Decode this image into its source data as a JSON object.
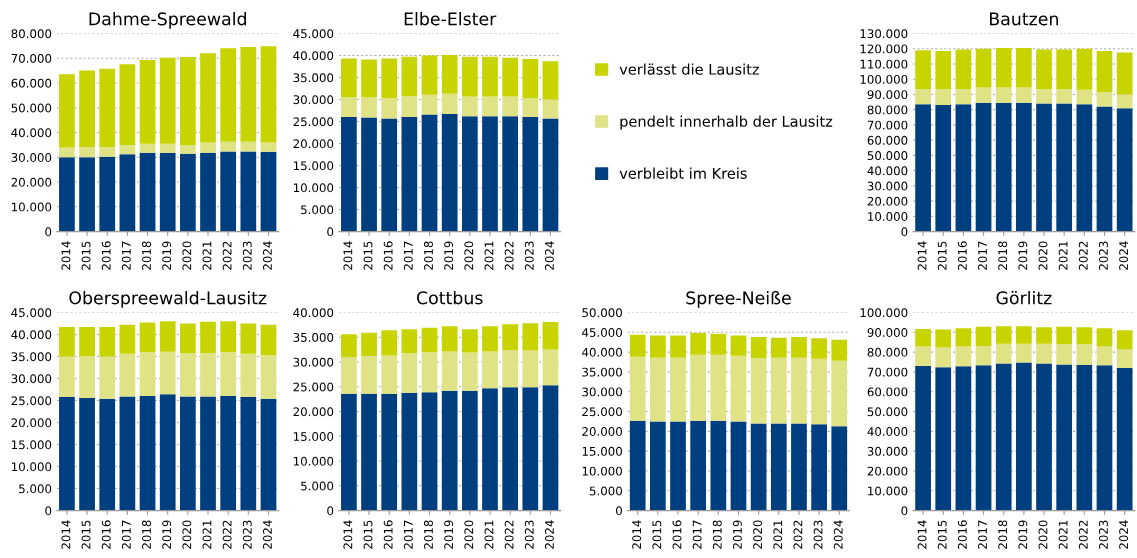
{
  "chart_data": [
    {
      "type": "bar",
      "title": "Dahme-Spreewald",
      "stacked": true,
      "grid": "y",
      "categories": [
        "2014",
        "2015",
        "2016",
        "2017",
        "2018",
        "2019",
        "2020",
        "2021",
        "2022",
        "2023",
        "2024"
      ],
      "series": [
        {
          "color": "#003f7f",
          "values": [
            30000,
            30000,
            30200,
            31200,
            31800,
            31800,
            31400,
            31800,
            32300,
            32300,
            32200
          ]
        },
        {
          "color": "#dfe386",
          "values": [
            4000,
            4200,
            4000,
            3800,
            3700,
            3700,
            3600,
            4200,
            4000,
            4000,
            3800
          ]
        },
        {
          "color": "#c8d400",
          "values": [
            29500,
            30800,
            31600,
            32600,
            33800,
            34700,
            35500,
            36000,
            37700,
            38200,
            38800
          ]
        }
      ],
      "ylim": [
        0,
        80000
      ],
      "yticks": [
        0,
        {
          "value": 10000,
          "label": "10.000"
        },
        {
          "value": 20000,
          "label": "20.000"
        },
        {
          "value": 30000,
          "label": "30.000"
        },
        {
          "value": 40000,
          "label": "40.000"
        },
        {
          "value": 50000,
          "label": "50.000"
        },
        {
          "value": 60000,
          "label": "60.000"
        },
        {
          "value": 70000,
          "label": "70.000"
        },
        {
          "value": 80000,
          "label": "80.000"
        }
      ]
    },
    {
      "type": "bar",
      "title": "Elbe-Elster",
      "stacked": true,
      "grid": "y",
      "legend": "right",
      "categories": [
        "2014",
        "2015",
        "2016",
        "2017",
        "2018",
        "2019",
        "2020",
        "2021",
        "2022",
        "2023",
        "2024"
      ],
      "series": [
        {
          "name": "verbleibt im Kreis",
          "color": "#003f7f",
          "values": [
            26000,
            25900,
            25700,
            26000,
            26600,
            26700,
            26200,
            26200,
            26200,
            26000,
            25700
          ]
        },
        {
          "name": "pendelt innerhalb der Lausitz",
          "color": "#dfe386",
          "values": [
            4500,
            4600,
            4600,
            4800,
            4500,
            4600,
            4500,
            4500,
            4500,
            4300,
            4300
          ]
        },
        {
          "name": "verlässt die Lausitz",
          "color": "#c8d400",
          "values": [
            8800,
            8600,
            9000,
            8900,
            8900,
            8800,
            9000,
            9000,
            8800,
            8900,
            8700
          ]
        }
      ],
      "ylim": [
        0,
        45000
      ],
      "yticks": [
        0,
        {
          "value": 5000,
          "label": "5.000"
        },
        {
          "value": 10000,
          "label": "10.000"
        },
        {
          "value": 15000,
          "label": "15.000"
        },
        {
          "value": 20000,
          "label": "20.000"
        },
        {
          "value": 25000,
          "label": "25.000"
        },
        {
          "value": 30000,
          "label": "30.000"
        },
        {
          "value": 35000,
          "label": "35.000"
        },
        {
          "value": 40000,
          "label": "40.000"
        },
        {
          "value": 45000,
          "label": "45.000"
        }
      ]
    },
    {
      "type": "bar",
      "title": "Bautzen",
      "stacked": true,
      "grid": "y",
      "categories": [
        "2014",
        "2015",
        "2016",
        "2017",
        "2018",
        "2019",
        "2020",
        "2021",
        "2022",
        "2023",
        "2024"
      ],
      "series": [
        {
          "color": "#003f7f",
          "values": [
            83500,
            83000,
            83500,
            84500,
            84500,
            84500,
            84000,
            84000,
            83500,
            82000,
            81000
          ]
        },
        {
          "color": "#dfe386",
          "values": [
            10000,
            10500,
            10000,
            10000,
            10000,
            10000,
            9500,
            9500,
            9500,
            9500,
            9000
          ]
        },
        {
          "color": "#c8d400",
          "values": [
            25500,
            25000,
            26000,
            25500,
            26000,
            26000,
            26000,
            26000,
            27000,
            27000,
            27500
          ]
        }
      ],
      "ylim": [
        0,
        130000
      ],
      "yticks": [
        0,
        {
          "value": 10000,
          "label": "10.000"
        },
        {
          "value": 20000,
          "label": "20.000"
        },
        {
          "value": 30000,
          "label": "30.000"
        },
        {
          "value": 40000,
          "label": "40.000"
        },
        {
          "value": 50000,
          "label": "50.000"
        },
        {
          "value": 60000,
          "label": "60.000"
        },
        {
          "value": 70000,
          "label": "70.000"
        },
        {
          "value": 80000,
          "label": "80.000"
        },
        {
          "value": 90000,
          "label": "90.000"
        },
        {
          "value": 100000,
          "label": "100.000"
        },
        {
          "value": 110000,
          "label": "110.000"
        },
        {
          "value": 120000,
          "label": "120.000"
        },
        {
          "value": 130000,
          "label": "130.000"
        }
      ]
    },
    {
      "type": "bar",
      "title": "Oberspreewald-Lausitz",
      "stacked": true,
      "grid": "y",
      "categories": [
        "2014",
        "2015",
        "2016",
        "2017",
        "2018",
        "2019",
        "2020",
        "2021",
        "2022",
        "2023",
        "2024"
      ],
      "series": [
        {
          "color": "#003f7f",
          "values": [
            25800,
            25600,
            25400,
            25900,
            26000,
            26400,
            25900,
            25900,
            26000,
            25800,
            25400
          ]
        },
        {
          "color": "#dfe386",
          "values": [
            9200,
            9500,
            9600,
            9700,
            10000,
            9700,
            9900,
            9900,
            10000,
            9800,
            9900
          ]
        },
        {
          "color": "#c8d400",
          "values": [
            6700,
            6600,
            6700,
            6600,
            6700,
            6900,
            6700,
            7100,
            7000,
            6900,
            6900
          ]
        }
      ],
      "ylim": [
        0,
        45000
      ],
      "yticks": [
        0,
        {
          "value": 5000,
          "label": "5.000"
        },
        {
          "value": 10000,
          "label": "10.000"
        },
        {
          "value": 15000,
          "label": "15.000"
        },
        {
          "value": 20000,
          "label": "20.000"
        },
        {
          "value": 25000,
          "label": "25.000"
        },
        {
          "value": 30000,
          "label": "30.000"
        },
        {
          "value": 35000,
          "label": "35.000"
        },
        {
          "value": 40000,
          "label": "40.000"
        },
        {
          "value": 45000,
          "label": "45.000"
        }
      ]
    },
    {
      "type": "bar",
      "title": "Cottbus",
      "stacked": true,
      "grid": "y",
      "categories": [
        "2014",
        "2015",
        "2016",
        "2017",
        "2018",
        "2019",
        "2020",
        "2021",
        "2022",
        "2023",
        "2024"
      ],
      "series": [
        {
          "color": "#003f7f",
          "values": [
            23600,
            23600,
            23600,
            23800,
            23900,
            24200,
            24200,
            24700,
            24900,
            24900,
            25300
          ]
        },
        {
          "color": "#dfe386",
          "values": [
            7400,
            7600,
            7700,
            8000,
            8100,
            7900,
            7700,
            7400,
            7500,
            7400,
            7200
          ]
        },
        {
          "color": "#c8d400",
          "values": [
            4600,
            4700,
            5100,
            4800,
            4900,
            5100,
            4700,
            5100,
            5200,
            5500,
            5600
          ]
        }
      ],
      "ylim": [
        0,
        40000
      ],
      "yticks": [
        0,
        {
          "value": 5000,
          "label": "5.000"
        },
        {
          "value": 10000,
          "label": "10.000"
        },
        {
          "value": 15000,
          "label": "15.000"
        },
        {
          "value": 20000,
          "label": "20.000"
        },
        {
          "value": 25000,
          "label": "25.000"
        },
        {
          "value": 30000,
          "label": "30.000"
        },
        {
          "value": 35000,
          "label": "35.000"
        },
        {
          "value": 40000,
          "label": "40.000"
        }
      ]
    },
    {
      "type": "bar",
      "title": "Spree-Neiße",
      "stacked": true,
      "grid": "y",
      "categories": [
        "2014",
        "2015",
        "2016",
        "2017",
        "2018",
        "2019",
        "2020",
        "2021",
        "2022",
        "2023",
        "2024"
      ],
      "series": [
        {
          "color": "#003f7f",
          "values": [
            22700,
            22500,
            22500,
            22700,
            22700,
            22500,
            22000,
            22000,
            22000,
            21800,
            21300
          ]
        },
        {
          "color": "#dfe386",
          "values": [
            16100,
            16100,
            16100,
            16600,
            16600,
            16600,
            16500,
            16600,
            16600,
            16500,
            16500
          ]
        },
        {
          "color": "#c8d400",
          "values": [
            5600,
            5600,
            5600,
            5500,
            5300,
            5100,
            5300,
            5000,
            5200,
            5200,
            5300
          ]
        }
      ],
      "ylim": [
        0,
        50000
      ],
      "yticks": [
        0,
        {
          "value": 5000,
          "label": "5.000"
        },
        {
          "value": 10000,
          "label": "10.000"
        },
        {
          "value": 15000,
          "label": "15.000"
        },
        {
          "value": 20000,
          "label": "20.000"
        },
        {
          "value": 25000,
          "label": "25.000"
        },
        {
          "value": 30000,
          "label": "30.000"
        },
        {
          "value": 35000,
          "label": "35.000"
        },
        {
          "value": 40000,
          "label": "40.000"
        },
        {
          "value": 45000,
          "label": "45.000"
        },
        {
          "value": 50000,
          "label": "50.000"
        }
      ]
    },
    {
      "type": "bar",
      "title": "Görlitz",
      "stacked": true,
      "grid": "y",
      "categories": [
        "2014",
        "2015",
        "2016",
        "2017",
        "2018",
        "2019",
        "2020",
        "2021",
        "2022",
        "2023",
        "2024"
      ],
      "series": [
        {
          "color": "#003f7f",
          "values": [
            73000,
            72300,
            72800,
            73300,
            74200,
            74700,
            74200,
            73800,
            73500,
            73300,
            72000
          ]
        },
        {
          "color": "#dfe386",
          "values": [
            9800,
            10000,
            10000,
            9800,
            10000,
            9500,
            10000,
            10200,
            10500,
            9500,
            9300
          ]
        },
        {
          "color": "#c8d400",
          "values": [
            8900,
            9100,
            9200,
            9700,
            8800,
            8800,
            8300,
            8800,
            8500,
            9200,
            9700
          ]
        }
      ],
      "ylim": [
        0,
        100000
      ],
      "yticks": [
        0,
        {
          "value": 10000,
          "label": "10.000"
        },
        {
          "value": 20000,
          "label": "20.000"
        },
        {
          "value": 30000,
          "label": "30.000"
        },
        {
          "value": 40000,
          "label": "40.000"
        },
        {
          "value": 50000,
          "label": "50.000"
        },
        {
          "value": 60000,
          "label": "60.000"
        },
        {
          "value": 70000,
          "label": "70.000"
        },
        {
          "value": 80000,
          "label": "80.000"
        },
        {
          "value": 90000,
          "label": "90.000"
        },
        {
          "value": 100000,
          "label": "100.000"
        }
      ]
    }
  ]
}
